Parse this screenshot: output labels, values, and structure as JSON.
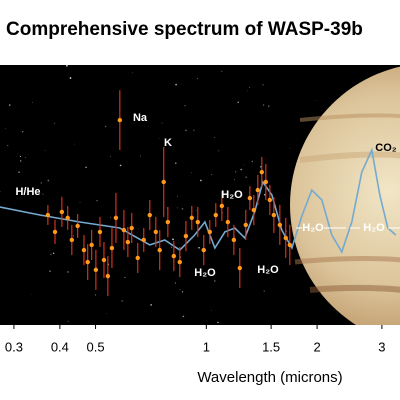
{
  "chart_data": {
    "type": "scatter",
    "title": "Comprehensive spectrum of WASP-39b",
    "xlabel": "Wavelength (microns)",
    "xscale": "log",
    "xlim": [
      0.275,
      3.36
    ],
    "ylim": [
      0,
      100
    ],
    "xticks": [
      0.3,
      0.4,
      0.5,
      1,
      1.5,
      2,
      3
    ],
    "point_color": "#ff9a1f",
    "error_color": "#d8301a",
    "model_color": "#74a9d0",
    "x": [
      0.371,
      0.388,
      0.405,
      0.42,
      0.431,
      0.447,
      0.465,
      0.476,
      0.488,
      0.501,
      0.514,
      0.527,
      0.54,
      0.554,
      0.568,
      0.582,
      0.597,
      0.612,
      0.627,
      0.651,
      0.676,
      0.702,
      0.729,
      0.747,
      0.766,
      0.786,
      0.816,
      0.847,
      0.88,
      0.913,
      0.948,
      0.984,
      1.022,
      1.061,
      1.102,
      1.144,
      1.188,
      1.233,
      1.28,
      1.313,
      1.346,
      1.38,
      1.415,
      1.451,
      1.488,
      1.526,
      1.584,
      1.644,
      1.686
    ],
    "values": [
      42.3,
      35.8,
      43.5,
      41.2,
      32.7,
      38.1,
      28.8,
      24.2,
      30.8,
      21.2,
      35.8,
      25.0,
      18.8,
      29.6,
      41.2,
      78.8,
      36.5,
      31.9,
      37.3,
      25.8,
      32.7,
      42.3,
      35.8,
      28.8,
      55.0,
      39.6,
      26.5,
      24.2,
      34.2,
      41.2,
      39.6,
      28.8,
      35.8,
      42.3,
      45.8,
      39.6,
      32.7,
      21.9,
      38.5,
      48.8,
      44.2,
      51.9,
      58.8,
      55.0,
      48.1,
      42.3,
      38.5,
      33.5,
      30.8
    ],
    "errors": [
      3.8,
      4.6,
      5.8,
      4.6,
      5.8,
      4.6,
      5.8,
      6.9,
      5.8,
      7.7,
      5.8,
      6.9,
      7.7,
      7.7,
      9.6,
      11.5,
      7.7,
      5.8,
      5.8,
      5.8,
      4.6,
      5.8,
      5.8,
      7.7,
      13.5,
      5.8,
      5.8,
      5.8,
      5.8,
      4.6,
      5.8,
      5.8,
      4.6,
      4.6,
      5.8,
      5.8,
      5.8,
      7.7,
      5.8,
      4.6,
      5.8,
      5.8,
      5.8,
      6.9,
      5.8,
      6.9,
      7.7,
      7.7,
      7.7
    ],
    "model_x": [
      0.275,
      0.353,
      0.453,
      0.582,
      0.702,
      0.771,
      0.847,
      0.93,
      0.991,
      1.055,
      1.123,
      1.195,
      1.272,
      1.354,
      1.424,
      1.507,
      1.604,
      1.708,
      1.817,
      1.935,
      2.06,
      2.193,
      2.334,
      2.485,
      2.646,
      2.817,
      2.961,
      3.113,
      3.273
    ],
    "model_values": [
      45.4,
      42.3,
      39.6,
      37.3,
      30.8,
      32.7,
      28.8,
      34.6,
      39.6,
      29.6,
      35.8,
      37.3,
      33.5,
      43.5,
      55.0,
      50.0,
      36.5,
      29.6,
      41.9,
      51.9,
      48.1,
      34.6,
      28.1,
      39.6,
      58.8,
      67.3,
      50.0,
      37.3,
      34.6
    ],
    "annotations": [
      "H/He",
      "Na",
      "K",
      "H₂O",
      "H₂O",
      "H₂O",
      "H₂O",
      "H₂O",
      "CO₂"
    ]
  }
}
